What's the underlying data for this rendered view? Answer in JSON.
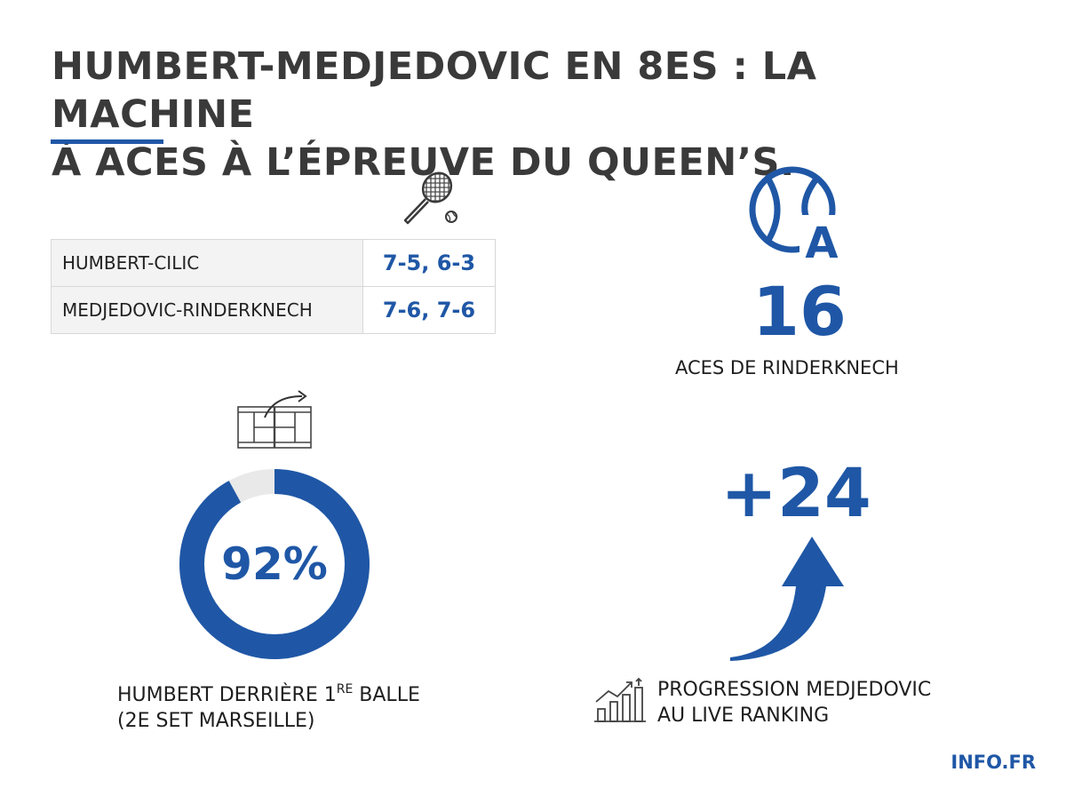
{
  "title": {
    "line1": "HUMBERT-MEDJEDOVIC EN 8ES : LA MACHINE",
    "line2": "À ACES À L’ÉPREUVE DU QUEEN’S."
  },
  "results": [
    {
      "match": "HUMBERT-CILIC",
      "score": "7-5, 6-3"
    },
    {
      "match": "MEDJEDOVIC-RINDERKNECH",
      "score": "7-6, 7-6"
    }
  ],
  "aces": {
    "icon_letter": "A",
    "value": "16",
    "label": "ACES DE RINDERKNECH"
  },
  "first_serve": {
    "value_text": "92%",
    "fraction": 0.92,
    "label_line1_pre": "HUMBERT DERRIÈRE 1",
    "label_line1_sup": "RE",
    "label_line1_post": " BALLE",
    "label_line2": "(2E SET MARSEILLE)"
  },
  "ranking": {
    "value": "+24",
    "label_line1": "PROGRESSION MEDJEDOVIC",
    "label_line2": "AU LIVE RANKING"
  },
  "brand": "INFO.FR",
  "colors": {
    "accent": "#1f57a6",
    "ring_track": "#e9e9e9",
    "title": "#3a3a3a"
  },
  "icons": {
    "racket": "tennis-racket-icon",
    "ace_ball": "tennis-ball-ace-icon",
    "court": "tennis-court-icon",
    "arrow": "curved-up-arrow-icon",
    "growth": "growth-chart-icon"
  }
}
